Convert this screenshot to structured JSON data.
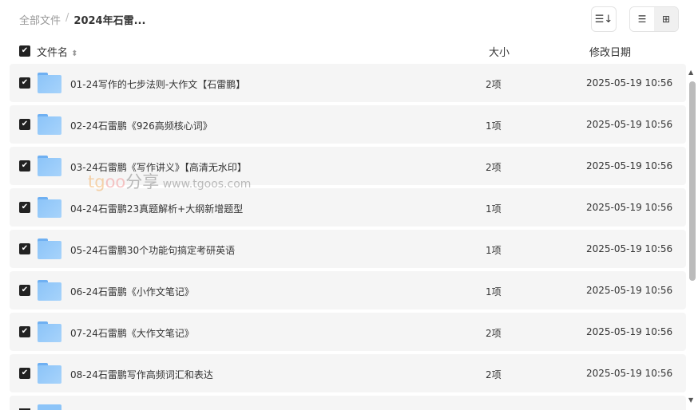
{
  "breadcrumb": {
    "root": "全部文件",
    "separator": "/",
    "current": "2024年石雷..."
  },
  "toolbar": {
    "sort_icon": "sort-icon",
    "list_icon": "list-view-icon",
    "grid_icon": "grid-view-icon"
  },
  "header": {
    "name": "文件名",
    "size": "大小",
    "date": "修改日期",
    "sort_glyph": "⬍"
  },
  "rows": [
    {
      "name": "01-24写作的七步法则-大作文【石雷鹏】",
      "size": "2项",
      "date": "2025-05-19 10:56"
    },
    {
      "name": "02-24石雷鹏《926高频核心词》",
      "size": "1项",
      "date": "2025-05-19 10:56"
    },
    {
      "name": "03-24石雷鹏《写作讲义》【高清无水印】",
      "size": "2项",
      "date": "2025-05-19 10:56"
    },
    {
      "name": "04-24石雷鹏23真题解析+大纲新增题型",
      "size": "1项",
      "date": "2025-05-19 10:56"
    },
    {
      "name": "05-24石雷鹏30个功能句搞定考研英语",
      "size": "1项",
      "date": "2025-05-19 10:56"
    },
    {
      "name": "06-24石雷鹏《小作文笔记》",
      "size": "1项",
      "date": "2025-05-19 10:56"
    },
    {
      "name": "07-24石雷鹏《大作文笔记》",
      "size": "2项",
      "date": "2025-05-19 10:56"
    },
    {
      "name": "08-24石雷鹏写作高频词汇和表达",
      "size": "2项",
      "date": "2025-05-19 10:56"
    },
    {
      "name": "",
      "size": "",
      "date": ""
    }
  ],
  "watermark": {
    "a": "tg",
    "b": "oo",
    "c": "分享",
    "url": "www.tgoos.com"
  }
}
